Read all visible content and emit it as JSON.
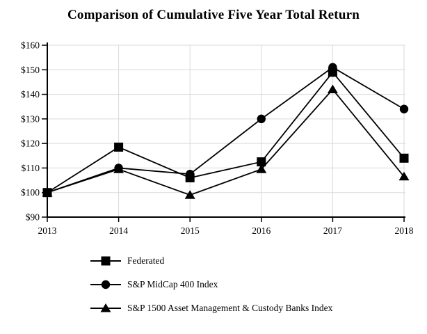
{
  "page": {
    "title": "Comparison of Cumulative Five Year Total Return"
  },
  "chart_data": {
    "type": "line",
    "title": "Comparison of Cumulative Five Year Total Return",
    "x": [
      "2013",
      "2014",
      "2015",
      "2016",
      "2017",
      "2018"
    ],
    "series": [
      {
        "name": "Federated",
        "marker": "square",
        "values": [
          100,
          118.5,
          106,
          112.5,
          149,
          114
        ]
      },
      {
        "name": "S&P MidCap 400 Index",
        "marker": "circle",
        "values": [
          100,
          110,
          107.5,
          130,
          151,
          134
        ]
      },
      {
        "name": "S&P 1500 Asset Management & Custody Banks Index",
        "marker": "triangle",
        "values": [
          100,
          109.5,
          99,
          109.5,
          142,
          106.5
        ]
      }
    ],
    "ylim": [
      90,
      160
    ],
    "ytick_step": 10,
    "yticks": [
      "$90",
      "$100",
      "$110",
      "$120",
      "$130",
      "$140",
      "$150",
      "$160"
    ],
    "grid": true,
    "legend_position": "bottom-left",
    "colors": {
      "line": "#000000",
      "grid": "#d9d9d9",
      "axis": "#000000",
      "text": "#000000",
      "background": "#ffffff"
    }
  }
}
